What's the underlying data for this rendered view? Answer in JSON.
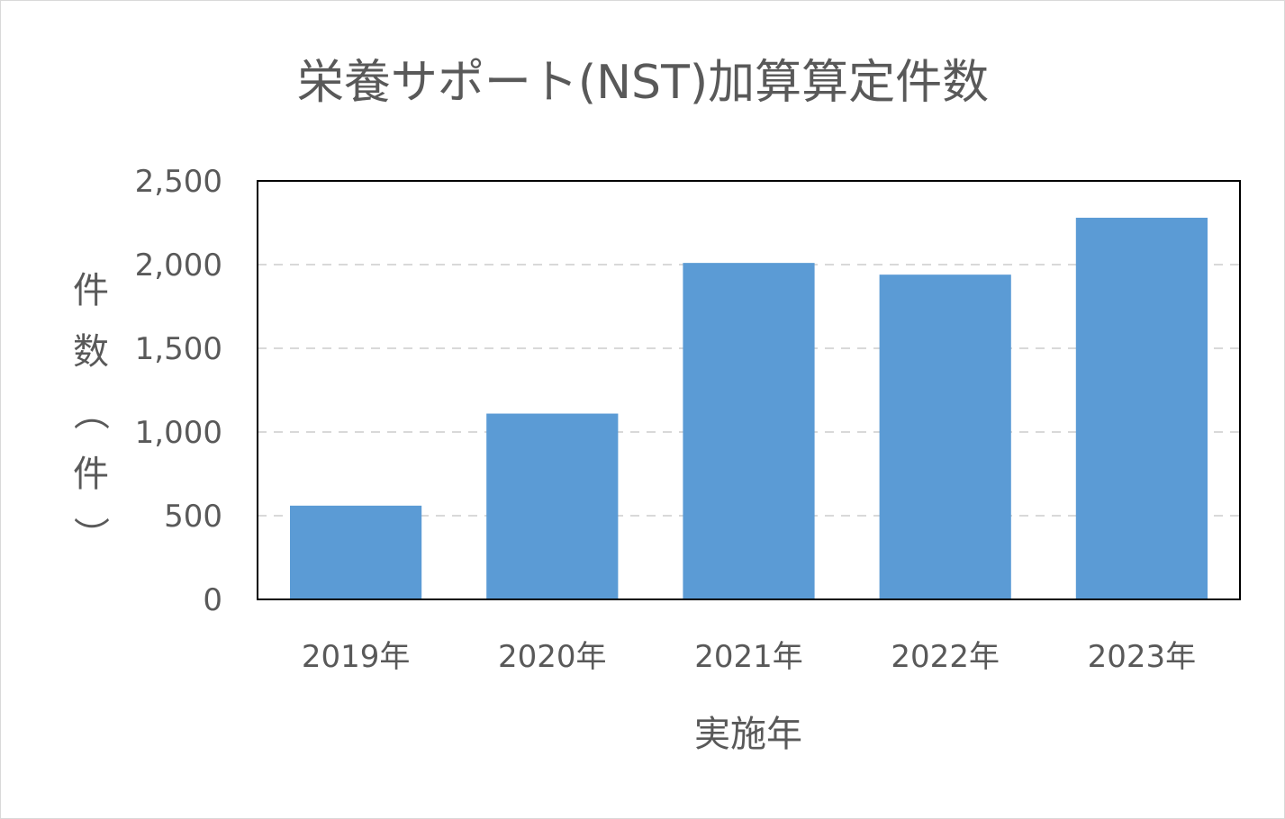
{
  "chart_data": {
    "type": "bar",
    "title": "栄養サポート(NST)加算算定件数",
    "xlabel": "実施年",
    "ylabel": "件数（件）",
    "categories": [
      "2019年",
      "2020年",
      "2021年",
      "2022年",
      "2023年"
    ],
    "series": [
      {
        "values": [
          560,
          1110,
          2010,
          1940,
          2280
        ]
      }
    ],
    "ylim": [
      0,
      2500
    ],
    "yticks": [
      0,
      500,
      1000,
      1500,
      2000,
      2500
    ],
    "ytick_labels": [
      "0",
      "500",
      "1,000",
      "1,500",
      "2,000",
      "2,500"
    ],
    "grid": "horizontal dashed",
    "legend": "none",
    "colors": {
      "bar": "#5b9bd5",
      "text": "#595959",
      "grid": "#d9d9d9",
      "plot_border": "#000000"
    }
  }
}
